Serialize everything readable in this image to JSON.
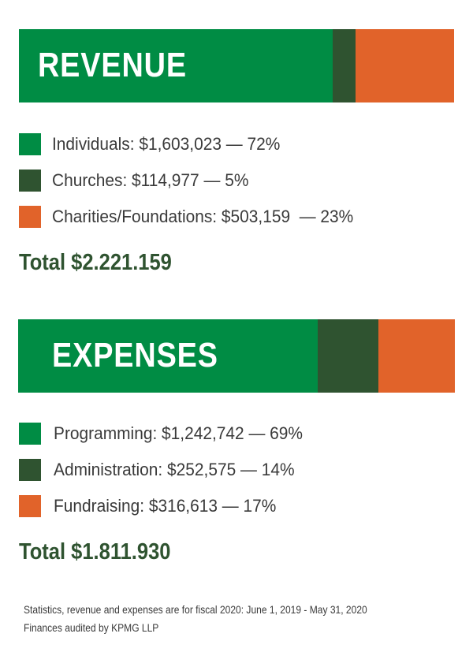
{
  "colors": {
    "primary_green": "#008c44",
    "dark_green": "#2f5330",
    "orange": "#e1632a",
    "total_text": "#2f5330"
  },
  "chart_data": [
    {
      "type": "bar",
      "orientation": "horizontal-stacked",
      "title": "REVENUE",
      "categories": [
        "Individuals",
        "Churches",
        "Charities/Foundations"
      ],
      "values": [
        1603023,
        114977,
        503159
      ],
      "percents": [
        72,
        5,
        23
      ],
      "colors": [
        "#008c44",
        "#2f5330",
        "#e1632a"
      ],
      "legend": [
        "Individuals: $1,603,023 — 72%",
        "Churches: $114,977 — 5%",
        "Charities/Foundations: $503,159  — 23%"
      ],
      "total_label": "Total $2.221.159"
    },
    {
      "type": "bar",
      "orientation": "horizontal-stacked",
      "title": "EXPENSES",
      "categories": [
        "Programming",
        "Administration",
        "Fundraising"
      ],
      "values": [
        1242742,
        252575,
        316613
      ],
      "percents": [
        69,
        14,
        17
      ],
      "colors": [
        "#008c44",
        "#2f5330",
        "#e1632a"
      ],
      "legend": [
        "Programming: $1,242,742 — 69%",
        "Administration: $252,575 — 14%",
        "Fundraising: $316,613 — 17%"
      ],
      "total_label": "Total $1.811.930"
    }
  ],
  "footnote": {
    "line1": "Statistics, revenue and expenses are for fiscal 2020: June 1, 2019 - May 31, 2020",
    "line2": "Finances audited by KPMG LLP"
  }
}
